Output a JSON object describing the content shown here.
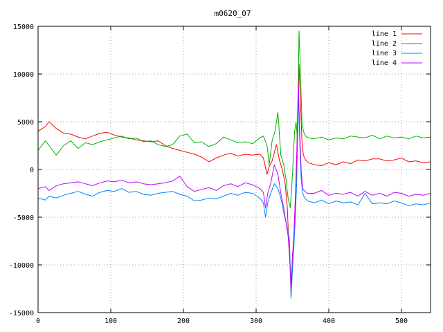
{
  "chart_data": {
    "type": "line",
    "title": "m0620_07",
    "xlabel": "",
    "ylabel": "",
    "xlim": [
      0,
      540
    ],
    "ylim": [
      -15000,
      15000
    ],
    "xticks": [
      0,
      100,
      200,
      300,
      400,
      500
    ],
    "yticks": [
      -15000,
      -10000,
      -5000,
      0,
      5000,
      10000,
      15000
    ],
    "grid": true,
    "legend_position": "top-right",
    "series": [
      {
        "name": "line 1",
        "color": "#ff0000",
        "x": [
          0,
          10,
          15,
          25,
          35,
          45,
          55,
          65,
          75,
          85,
          95,
          105,
          115,
          125,
          135,
          145,
          155,
          165,
          175,
          185,
          195,
          205,
          215,
          225,
          235,
          245,
          255,
          265,
          275,
          285,
          295,
          305,
          310,
          315,
          318,
          322,
          328,
          332,
          336,
          340,
          343,
          345,
          347,
          349,
          351,
          353,
          355,
          357,
          359,
          361,
          363,
          365,
          368,
          372,
          380,
          390,
          400,
          410,
          420,
          430,
          440,
          450,
          460,
          470,
          480,
          490,
          500,
          510,
          520,
          530,
          540
        ],
        "y": [
          4000,
          4500,
          5000,
          4300,
          3800,
          3700,
          3400,
          3200,
          3500,
          3800,
          3900,
          3600,
          3400,
          3300,
          3100,
          3000,
          2900,
          3000,
          2500,
          2200,
          2000,
          1800,
          1600,
          1300,
          800,
          1200,
          1500,
          1700,
          1400,
          1600,
          1500,
          1600,
          1200,
          -500,
          300,
          900,
          2600,
          1000,
          0,
          -1500,
          -4000,
          -8000,
          -10500,
          -12000,
          -9000,
          -5000,
          -1000,
          3000,
          11000,
          7000,
          3000,
          1500,
          1000,
          700,
          500,
          400,
          700,
          500,
          800,
          600,
          1000,
          900,
          1100,
          1100,
          900,
          1000,
          1200,
          800,
          900,
          700,
          800
        ]
      },
      {
        "name": "line 2",
        "color": "#00b000",
        "x": [
          0,
          10,
          15,
          25,
          35,
          45,
          55,
          65,
          75,
          85,
          95,
          105,
          115,
          125,
          135,
          145,
          155,
          165,
          175,
          185,
          195,
          205,
          215,
          225,
          235,
          245,
          255,
          265,
          275,
          285,
          295,
          305,
          310,
          315,
          318,
          322,
          326,
          330,
          334,
          338,
          341,
          344,
          347,
          349,
          351,
          353,
          355,
          357,
          359,
          361,
          363,
          365,
          368,
          372,
          380,
          390,
          400,
          410,
          420,
          430,
          440,
          450,
          460,
          470,
          480,
          490,
          500,
          510,
          520,
          530,
          540
        ],
        "y": [
          2000,
          3000,
          2500,
          1500,
          2500,
          3000,
          2200,
          2800,
          2600,
          2900,
          3100,
          3300,
          3500,
          3200,
          3300,
          2900,
          3000,
          2600,
          2400,
          2600,
          3500,
          3700,
          2800,
          2900,
          2400,
          2700,
          3400,
          3100,
          2800,
          2900,
          2700,
          3300,
          3500,
          2500,
          500,
          3000,
          4000,
          6000,
          1500,
          500,
          -1000,
          -3000,
          -4000,
          -2000,
          1000,
          4000,
          5000,
          3000,
          14500,
          10000,
          5000,
          4000,
          3500,
          3300,
          3200,
          3400,
          3100,
          3300,
          3200,
          3500,
          3400,
          3300,
          3600,
          3200,
          3500,
          3300,
          3400,
          3200,
          3500,
          3300,
          3400
        ]
      },
      {
        "name": "line 3",
        "color": "#0080ff",
        "x": [
          0,
          10,
          15,
          25,
          35,
          45,
          55,
          65,
          75,
          85,
          95,
          105,
          115,
          125,
          135,
          145,
          155,
          165,
          175,
          185,
          195,
          205,
          215,
          225,
          235,
          245,
          255,
          265,
          275,
          285,
          295,
          305,
          310,
          313,
          316,
          320,
          325,
          330,
          334,
          338,
          341,
          344,
          346,
          348,
          350,
          352,
          354,
          356,
          358,
          360,
          362,
          364,
          367,
          371,
          380,
          390,
          400,
          410,
          420,
          430,
          440,
          450,
          460,
          470,
          480,
          490,
          500,
          510,
          520,
          530,
          540
        ],
        "y": [
          -3000,
          -3200,
          -2800,
          -3000,
          -2700,
          -2500,
          -2300,
          -2600,
          -2800,
          -2400,
          -2200,
          -2300,
          -2000,
          -2400,
          -2300,
          -2600,
          -2700,
          -2500,
          -2400,
          -2300,
          -2600,
          -2800,
          -3300,
          -3200,
          -3000,
          -3100,
          -2800,
          -2500,
          -2700,
          -2400,
          -2500,
          -3000,
          -3500,
          -5000,
          -3500,
          -2500,
          -1500,
          -2000,
          -3000,
          -4500,
          -5500,
          -6500,
          -7500,
          -13500,
          -10500,
          -8000,
          -5000,
          -1000,
          8000,
          3000,
          -1000,
          -2500,
          -3000,
          -3300,
          -3500,
          -3200,
          -3600,
          -3300,
          -3500,
          -3400,
          -3700,
          -2500,
          -3600,
          -3500,
          -3600,
          -3300,
          -3500,
          -3800,
          -3600,
          -3700,
          -3500
        ]
      },
      {
        "name": "line 4",
        "color": "#c000ff",
        "x": [
          0,
          10,
          15,
          25,
          35,
          45,
          55,
          65,
          75,
          85,
          95,
          105,
          115,
          125,
          135,
          145,
          155,
          165,
          175,
          185,
          195,
          205,
          215,
          225,
          235,
          245,
          255,
          265,
          275,
          285,
          295,
          305,
          310,
          313,
          316,
          320,
          325,
          330,
          334,
          338,
          341,
          344,
          346,
          348,
          350,
          352,
          354,
          356,
          358,
          360,
          362,
          364,
          367,
          371,
          380,
          390,
          400,
          410,
          420,
          430,
          440,
          450,
          460,
          470,
          480,
          490,
          500,
          510,
          520,
          530,
          540
        ],
        "y": [
          -2000,
          -1800,
          -2200,
          -1700,
          -1500,
          -1400,
          -1300,
          -1500,
          -1700,
          -1400,
          -1200,
          -1300,
          -1100,
          -1400,
          -1300,
          -1500,
          -1600,
          -1500,
          -1400,
          -1200,
          -700,
          -1800,
          -2300,
          -2100,
          -1900,
          -2200,
          -1700,
          -1500,
          -1800,
          -1400,
          -1600,
          -2000,
          -2400,
          -4000,
          -2500,
          -1500,
          500,
          -500,
          -2500,
          -4000,
          -5500,
          -7000,
          -9000,
          -12500,
          -9000,
          -7000,
          -3000,
          2000,
          9000,
          4000,
          0,
          -2000,
          -2300,
          -2500,
          -2500,
          -2200,
          -2700,
          -2500,
          -2600,
          -2400,
          -2800,
          -2300,
          -2700,
          -2500,
          -2800,
          -2400,
          -2500,
          -2800,
          -2600,
          -2700,
          -2500
        ]
      }
    ]
  }
}
